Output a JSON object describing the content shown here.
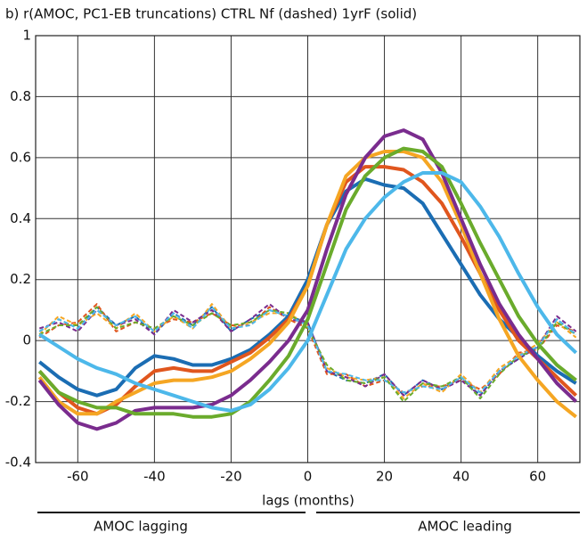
{
  "chart_data": {
    "type": "line",
    "title": "b) r(AMOC, PC1-EB truncations) CTRL Nf (dashed) 1yrF (solid)",
    "x_label": "lags (months)",
    "annotations": [
      "AMOC lagging",
      "AMOC leading"
    ],
    "x": [
      -70,
      -65,
      -60,
      -55,
      -50,
      -45,
      -40,
      -35,
      -30,
      -25,
      -20,
      -15,
      -10,
      -5,
      0,
      5,
      10,
      15,
      20,
      25,
      30,
      35,
      40,
      45,
      50,
      55,
      60,
      65,
      70
    ],
    "xlim": [
      -71,
      71
    ],
    "xticks": [
      -60,
      -40,
      -20,
      0,
      20,
      40,
      60
    ],
    "ylim": [
      -0.4,
      1
    ],
    "yticks": [
      -0.4,
      -0.2,
      0,
      0.2,
      0.4,
      0.6,
      0.8,
      1
    ],
    "grid": true,
    "series": [
      {
        "color": "#1b6db3",
        "dash": true,
        "values": [
          0.03,
          0.07,
          0.04,
          0.11,
          0.05,
          0.08,
          0.02,
          0.09,
          0.05,
          0.11,
          0.03,
          0.07,
          0.1,
          0.08,
          0.06,
          -0.1,
          -0.13,
          -0.14,
          -0.11,
          -0.18,
          -0.13,
          -0.16,
          -0.12,
          -0.18,
          -0.1,
          -0.06,
          -0.02,
          0.07,
          0.02
        ]
      },
      {
        "color": "#e0561e",
        "dash": true,
        "values": [
          0.01,
          0.05,
          0.06,
          0.12,
          0.03,
          0.06,
          0.04,
          0.07,
          0.06,
          0.09,
          0.05,
          0.05,
          0.11,
          0.07,
          0.04,
          -0.11,
          -0.11,
          -0.15,
          -0.13,
          -0.17,
          -0.15,
          -0.15,
          -0.13,
          -0.16,
          -0.11,
          -0.04,
          -0.03,
          0.05,
          0.03
        ]
      },
      {
        "color": "#f5a623",
        "dash": true,
        "values": [
          0.02,
          0.08,
          0.05,
          0.09,
          0.04,
          0.09,
          0.03,
          0.08,
          0.04,
          0.12,
          0.04,
          0.06,
          0.09,
          0.09,
          0.05,
          -0.09,
          -0.12,
          -0.13,
          -0.12,
          -0.19,
          -0.14,
          -0.17,
          -0.11,
          -0.17,
          -0.09,
          -0.05,
          -0.01,
          0.06,
          0.01
        ]
      },
      {
        "color": "#7a2c8e",
        "dash": true,
        "values": [
          0.04,
          0.06,
          0.03,
          0.1,
          0.05,
          0.07,
          0.02,
          0.1,
          0.06,
          0.1,
          0.03,
          0.07,
          0.12,
          0.07,
          0.06,
          -0.1,
          -0.12,
          -0.15,
          -0.11,
          -0.18,
          -0.13,
          -0.16,
          -0.13,
          -0.18,
          -0.1,
          -0.06,
          -0.02,
          0.08,
          0.03
        ]
      },
      {
        "color": "#6aab2c",
        "dash": true,
        "values": [
          0.02,
          0.05,
          0.05,
          0.11,
          0.04,
          0.06,
          0.04,
          0.08,
          0.05,
          0.09,
          0.05,
          0.06,
          0.1,
          0.09,
          0.04,
          -0.08,
          -0.13,
          -0.14,
          -0.12,
          -0.2,
          -0.14,
          -0.15,
          -0.12,
          -0.19,
          -0.11,
          -0.05,
          -0.03,
          0.06,
          0.02
        ]
      },
      {
        "color": "#4db8ea",
        "dash": true,
        "values": [
          0.03,
          0.07,
          0.04,
          0.1,
          0.05,
          0.08,
          0.03,
          0.09,
          0.04,
          0.11,
          0.04,
          0.05,
          0.1,
          0.08,
          0.05,
          -0.1,
          -0.11,
          -0.13,
          -0.13,
          -0.17,
          -0.15,
          -0.16,
          -0.12,
          -0.17,
          -0.1,
          -0.05,
          -0.02,
          0.07,
          0.02
        ]
      },
      {
        "color": "#1b6db3",
        "dash": false,
        "values": [
          -0.07,
          -0.12,
          -0.16,
          -0.18,
          -0.16,
          -0.09,
          -0.05,
          -0.06,
          -0.08,
          -0.08,
          -0.06,
          -0.03,
          0.02,
          0.08,
          0.2,
          0.38,
          0.49,
          0.53,
          0.51,
          0.5,
          0.45,
          0.35,
          0.25,
          0.15,
          0.07,
          0.01,
          -0.05,
          -0.1,
          -0.14
        ]
      },
      {
        "color": "#e0561e",
        "dash": false,
        "values": [
          -0.1,
          -0.17,
          -0.22,
          -0.24,
          -0.21,
          -0.15,
          -0.1,
          -0.09,
          -0.1,
          -0.1,
          -0.07,
          -0.04,
          0.01,
          0.07,
          0.18,
          0.38,
          0.52,
          0.57,
          0.57,
          0.56,
          0.52,
          0.45,
          0.34,
          0.22,
          0.1,
          0,
          -0.06,
          -0.12,
          -0.18
        ]
      },
      {
        "color": "#f5a623",
        "dash": false,
        "values": [
          -0.12,
          -0.2,
          -0.24,
          -0.24,
          -0.2,
          -0.17,
          -0.14,
          -0.13,
          -0.13,
          -0.12,
          -0.1,
          -0.06,
          -0.01,
          0.06,
          0.18,
          0.38,
          0.54,
          0.6,
          0.62,
          0.62,
          0.6,
          0.52,
          0.38,
          0.22,
          0.07,
          -0.05,
          -0.13,
          -0.2,
          -0.25
        ]
      },
      {
        "color": "#7a2c8e",
        "dash": false,
        "values": [
          -0.13,
          -0.21,
          -0.27,
          -0.29,
          -0.27,
          -0.23,
          -0.22,
          -0.22,
          -0.22,
          -0.21,
          -0.18,
          -0.13,
          -0.07,
          0,
          0.1,
          0.3,
          0.48,
          0.6,
          0.67,
          0.69,
          0.66,
          0.55,
          0.4,
          0.25,
          0.12,
          0.02,
          -0.06,
          -0.14,
          -0.2
        ]
      },
      {
        "color": "#6aab2c",
        "dash": false,
        "values": [
          -0.1,
          -0.17,
          -0.2,
          -0.22,
          -0.22,
          -0.24,
          -0.24,
          -0.24,
          -0.25,
          -0.25,
          -0.24,
          -0.2,
          -0.13,
          -0.05,
          0.07,
          0.25,
          0.43,
          0.54,
          0.6,
          0.63,
          0.62,
          0.57,
          0.45,
          0.32,
          0.2,
          0.08,
          -0.01,
          -0.08,
          -0.13
        ]
      },
      {
        "color": "#4db8ea",
        "dash": false,
        "values": [
          0.02,
          -0.02,
          -0.06,
          -0.09,
          -0.11,
          -0.14,
          -0.16,
          -0.18,
          -0.2,
          -0.22,
          -0.23,
          -0.21,
          -0.16,
          -0.09,
          0,
          0.15,
          0.3,
          0.4,
          0.47,
          0.52,
          0.55,
          0.55,
          0.52,
          0.44,
          0.34,
          0.22,
          0.11,
          0.02,
          -0.04
        ]
      }
    ]
  }
}
